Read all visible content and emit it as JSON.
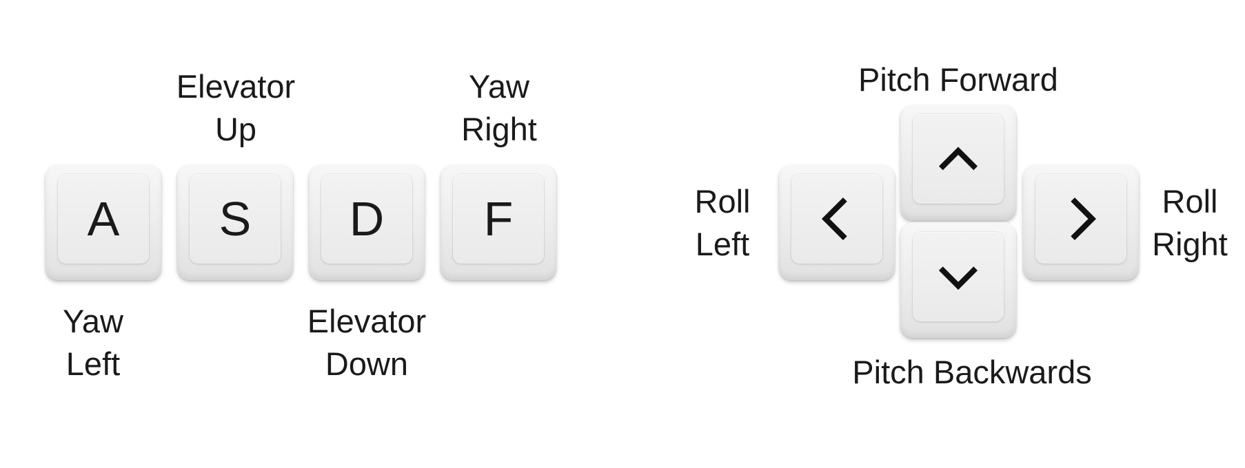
{
  "wasd_group": {
    "keys": [
      {
        "letter": "A",
        "label_lines": [
          "Yaw",
          "Left"
        ]
      },
      {
        "letter": "S",
        "label_lines": [
          "Elevator",
          "Up"
        ]
      },
      {
        "letter": "D",
        "label_lines": [
          "Elevator",
          "Down"
        ]
      },
      {
        "letter": "F",
        "label_lines": [
          "Yaw",
          "Right"
        ]
      }
    ]
  },
  "arrow_group": {
    "up": {
      "icon": "chevron-up-icon",
      "label": "Pitch Forward"
    },
    "down": {
      "icon": "chevron-down-icon",
      "label": "Pitch Backwards"
    },
    "left": {
      "icon": "chevron-left-icon",
      "label_lines": [
        "Roll",
        "Left"
      ]
    },
    "right": {
      "icon": "chevron-right-icon",
      "label_lines": [
        "Roll",
        "Right"
      ]
    }
  },
  "colors": {
    "text": "#1a1a1a",
    "arrow": "#111111",
    "key_base": "#ececec",
    "background": "#ffffff"
  }
}
